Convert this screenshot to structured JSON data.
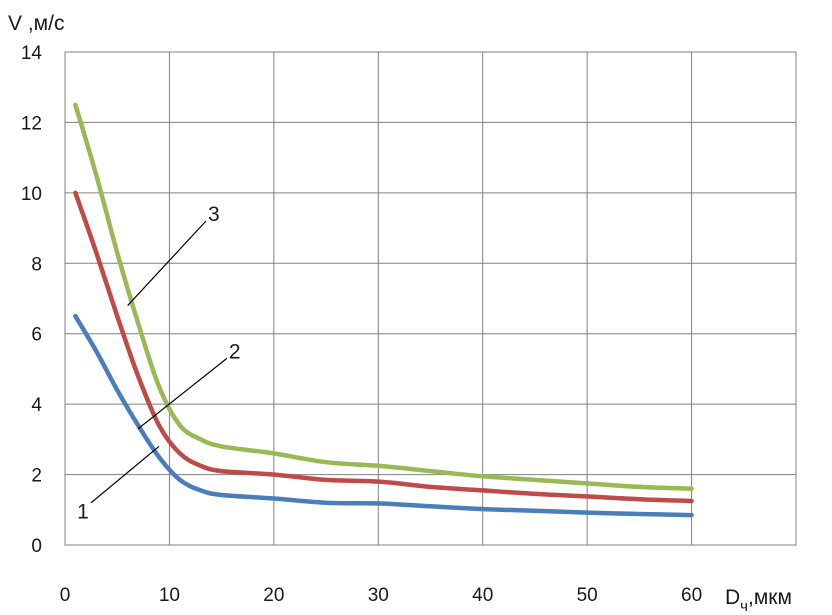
{
  "chart_data": {
    "type": "line",
    "ylabel": "V ,м/с",
    "xlabel": "D",
    "xlabel_sub": "ч",
    "xlabel_unit": ",мкм",
    "xlim": [
      0,
      70
    ],
    "ylim": [
      0,
      14
    ],
    "x_ticks": [
      "0",
      "10",
      "20",
      "30",
      "40",
      "50",
      "60"
    ],
    "y_ticks": [
      "0",
      "2",
      "4",
      "6",
      "8",
      "10",
      "12",
      "14"
    ],
    "grid": true,
    "colors": {
      "1": "#4a7ebb",
      "2": "#be4b48",
      "3": "#98b954"
    },
    "series": [
      {
        "name": "1",
        "x": [
          1,
          3,
          5,
          7,
          9,
          11,
          13,
          15,
          20,
          25,
          30,
          35,
          40,
          45,
          50,
          55,
          60
        ],
        "y": [
          6.5,
          5.5,
          4.4,
          3.4,
          2.5,
          1.85,
          1.55,
          1.42,
          1.32,
          1.2,
          1.18,
          1.1,
          1.02,
          0.97,
          0.92,
          0.88,
          0.85
        ]
      },
      {
        "name": "2",
        "x": [
          1,
          3,
          5,
          7,
          9,
          11,
          13,
          15,
          20,
          25,
          30,
          35,
          40,
          45,
          50,
          55,
          60
        ],
        "y": [
          10,
          8.3,
          6.5,
          4.8,
          3.4,
          2.6,
          2.25,
          2.1,
          2.0,
          1.85,
          1.8,
          1.65,
          1.55,
          1.45,
          1.38,
          1.3,
          1.25
        ]
      },
      {
        "name": "3",
        "x": [
          1,
          3,
          5,
          7,
          9,
          11,
          13,
          15,
          20,
          25,
          30,
          35,
          40,
          45,
          50,
          55,
          60
        ],
        "y": [
          12.5,
          10.5,
          8.3,
          6.3,
          4.5,
          3.4,
          3.0,
          2.8,
          2.6,
          2.35,
          2.25,
          2.1,
          1.95,
          1.85,
          1.75,
          1.65,
          1.6
        ]
      }
    ],
    "annotations": [
      {
        "label": "1",
        "series": "1",
        "point": [
          9,
          2.8
        ],
        "text_at": [
          2.5,
          1.2
        ]
      },
      {
        "label": "2",
        "series": "2",
        "point": [
          7,
          3.3
        ],
        "text_at": [
          15.5,
          5.3
        ]
      },
      {
        "label": "3",
        "series": "3",
        "point": [
          6,
          6.8
        ],
        "text_at": [
          13.5,
          9.2
        ]
      }
    ]
  }
}
